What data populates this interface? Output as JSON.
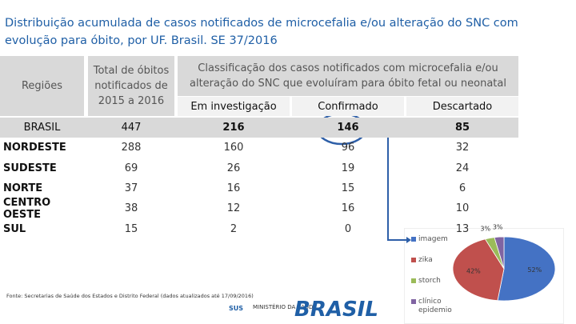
{
  "header": {
    "title": "Distribuição acumulada de casos notificados de microcefalia e/ou alteração do SNC com evolução para óbito, por UF. Brasil. SE 37/2016"
  },
  "table": {
    "columns": [
      "Regiões",
      "Total de óbitos notificados de 2015 a 2016",
      "Classificação dos casos notificados com microcefalia e/ou alteração do SNC que evoluíram para óbito fetal ou neonatal"
    ],
    "subcolumns": [
      "Em investigação",
      "Confirmado",
      "Descartado"
    ],
    "rows": [
      [
        "BRASIL",
        "447",
        "216",
        "146",
        "85"
      ],
      [
        "NORDESTE",
        "288",
        "160",
        "96",
        "32"
      ],
      [
        "SUDESTE",
        "69",
        "26",
        "19",
        "24"
      ],
      [
        "NORTE",
        "37",
        "16",
        "15",
        "6"
      ],
      [
        "CENTRO OESTE",
        "38",
        "12",
        "16",
        "10"
      ],
      [
        "SUL",
        "15",
        "2",
        "0",
        "13"
      ]
    ]
  },
  "source": "Fonte: Secretarias de Saúde dos Estados e Distrito Federal (dados atualizados até 17/09/2016)",
  "footer": {
    "sus": "SUS",
    "ministry": "MINISTÉRIO DA SAÚDE",
    "brand": "BRASIL"
  },
  "chart_data": {
    "type": "pie",
    "categories": [
      "imagem",
      "zika",
      "storch",
      "clínico epidemio"
    ],
    "values": [
      52,
      42,
      3,
      3
    ],
    "value_labels": [
      "52%",
      "42%",
      "3%",
      "3%"
    ],
    "colors": [
      "#4472c4",
      "#c0504d",
      "#9bbb59",
      "#8064a2"
    ]
  }
}
